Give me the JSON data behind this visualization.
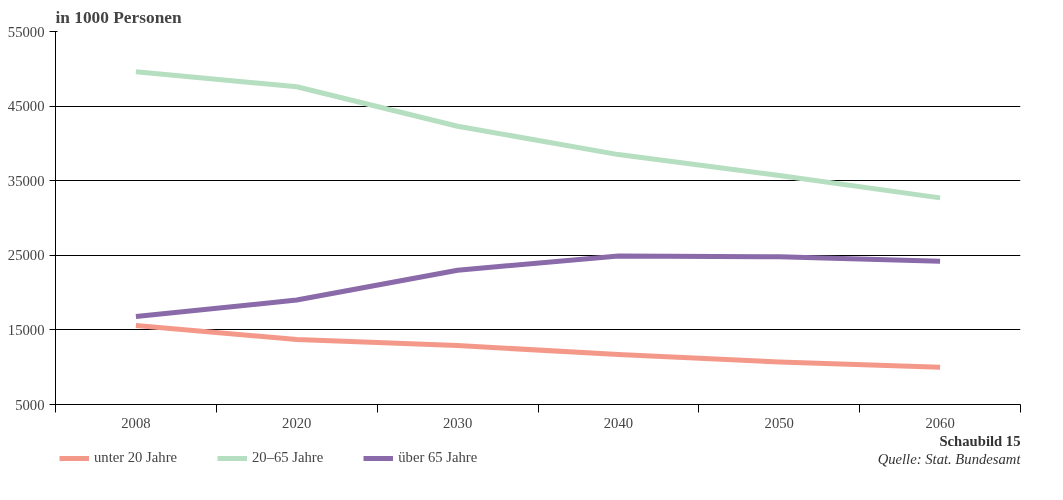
{
  "chart_data": {
    "type": "line",
    "title": "in 1000 Personen",
    "categories": [
      "2008",
      "2020",
      "2030",
      "2040",
      "2050",
      "2060"
    ],
    "series": [
      {
        "name": "unter 20 Jahre",
        "color": "#f4998a",
        "values": [
          15600,
          13700,
          12900,
          11700,
          10700,
          10000
        ]
      },
      {
        "name": "20–65 Jahre",
        "color": "#b5dfc0",
        "values": [
          49600,
          47600,
          42300,
          38500,
          35700,
          32700
        ]
      },
      {
        "name": "über 65 Jahre",
        "color": "#8a6aa8",
        "values": [
          16800,
          19000,
          23000,
          24900,
          24800,
          24200
        ]
      }
    ],
    "ylim": [
      5000,
      55000
    ],
    "yticks": [
      5000,
      15000,
      25000,
      35000,
      45000,
      55000
    ],
    "grid": "y",
    "legend": "bottom",
    "marker": "none",
    "line_style": "solid",
    "annotations": [
      "Schaubild 15",
      "Quelle: Stat. Bundesamt"
    ]
  }
}
